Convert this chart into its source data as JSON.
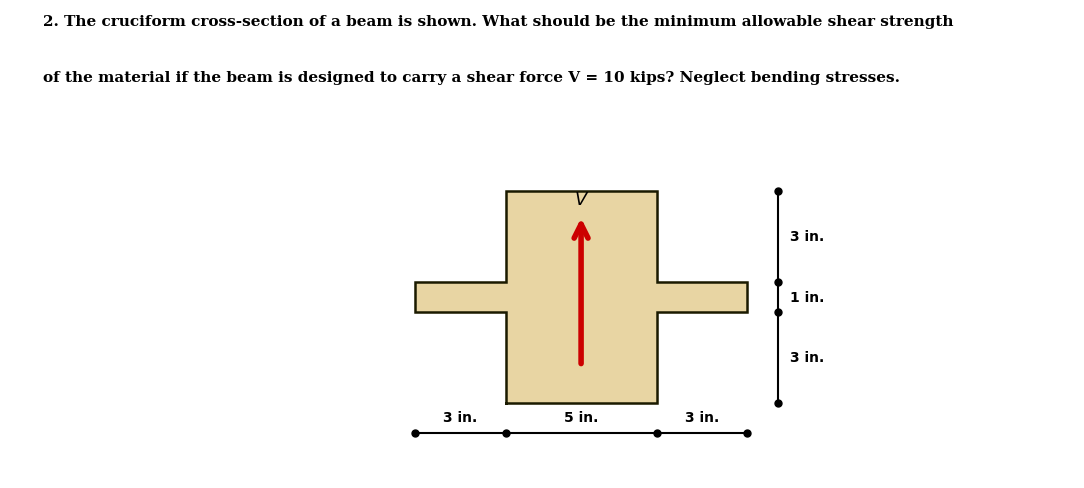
{
  "title_line1": "2. The cruciform cross-section of a beam is shown. What should be the minimum allowable shear strength",
  "title_line2": "of the material if the beam is designed to carry a shear force V = 10 kips? Neglect bending stresses.",
  "cross_fill_color": "#E8D5A3",
  "cross_edge_color": "#1a1a00",
  "cross_edge_width": 1.8,
  "dim_line_color": "#000000",
  "arrow_color": "#CC0000",
  "label_V": "V",
  "dim_labels_bottom": [
    "3 in.",
    "5 in.",
    "3 in."
  ],
  "dim_labels_right": [
    "3 in.",
    "1 in.",
    "3 in."
  ],
  "figsize": [
    10.84,
    4.89
  ],
  "dpi": 100
}
